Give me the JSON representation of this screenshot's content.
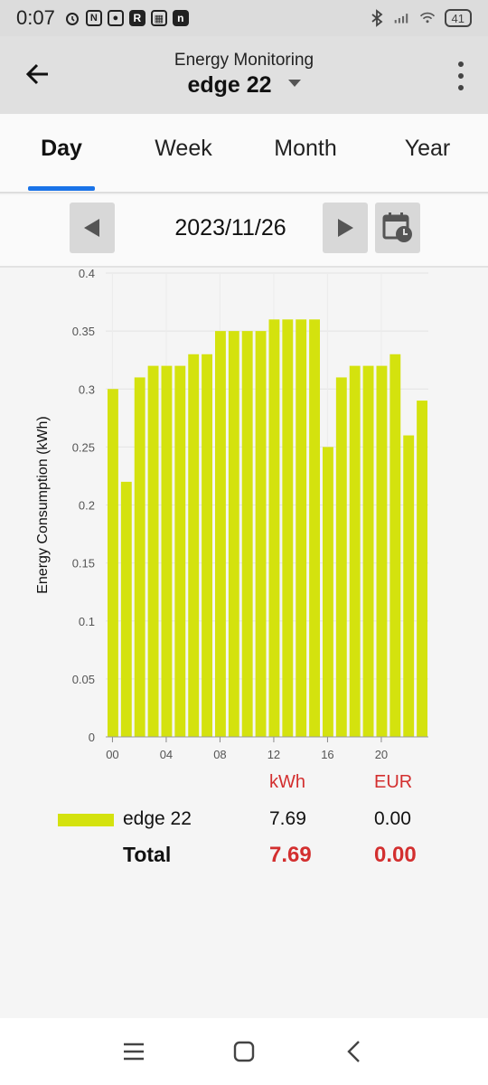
{
  "status_bar": {
    "time": "0:07",
    "battery": "41",
    "left_icons": [
      "alarm-icon",
      "nfc-icon",
      "app-icon",
      "r-app-icon",
      "calendar-app-icon",
      "n-app-icon"
    ],
    "right_icons": [
      "bluetooth-icon",
      "signal-icon",
      "wifi-icon",
      "battery-icon"
    ]
  },
  "app_bar": {
    "subtitle": "Energy Monitoring",
    "device": "edge 22"
  },
  "tabs": [
    {
      "label": "Day",
      "active": true
    },
    {
      "label": "Week",
      "active": false
    },
    {
      "label": "Month",
      "active": false
    },
    {
      "label": "Year",
      "active": false
    }
  ],
  "date_nav": {
    "date": "2023/11/26"
  },
  "chart_data": {
    "type": "bar",
    "ylabel": "Energy Consumption (kWh)",
    "xlabel": "",
    "ylim": [
      0,
      0.4
    ],
    "yticks": [
      "0",
      "0.05",
      "0.1",
      "0.15",
      "0.2",
      "0.25",
      "0.3",
      "0.35",
      "0.4"
    ],
    "xticks": [
      "00",
      "04",
      "08",
      "12",
      "16",
      "20"
    ],
    "categories": [
      "00",
      "01",
      "02",
      "03",
      "04",
      "05",
      "06",
      "07",
      "08",
      "09",
      "10",
      "11",
      "12",
      "13",
      "14",
      "15",
      "16",
      "17",
      "18",
      "19",
      "20",
      "21",
      "22",
      "23"
    ],
    "series": [
      {
        "name": "edge 22",
        "color": "#d4e20e",
        "values": [
          0.3,
          0.22,
          0.31,
          0.32,
          0.32,
          0.32,
          0.33,
          0.33,
          0.35,
          0.35,
          0.35,
          0.35,
          0.36,
          0.36,
          0.36,
          0.36,
          0.25,
          0.31,
          0.32,
          0.32,
          0.32,
          0.33,
          0.26,
          0.29
        ]
      }
    ],
    "grid": true
  },
  "summary": {
    "col_kwh": "kWh",
    "col_eur": "EUR",
    "rows": [
      {
        "label": "edge 22",
        "kwh": "7.69",
        "eur": "0.00"
      }
    ],
    "total": {
      "label": "Total",
      "kwh": "7.69",
      "eur": "0.00"
    },
    "accent_color": "#d32f2f"
  }
}
